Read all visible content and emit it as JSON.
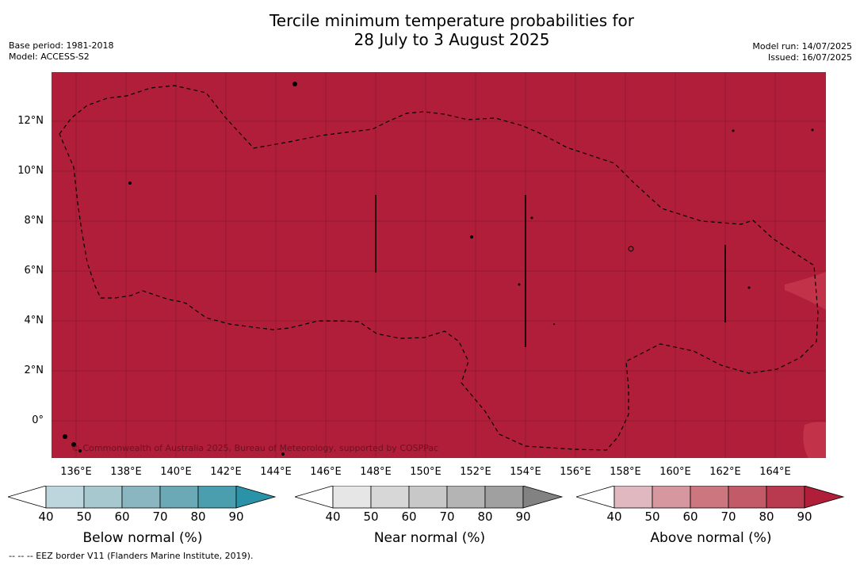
{
  "title_line1": "Tercile minimum temperature probabilities for",
  "title_line2": "28 July to 3 August 2025",
  "meta_left": {
    "base_period": "Base period: 1981-2018",
    "model": "Model: ACCESS-S2"
  },
  "meta_right": {
    "model_run": "Model run: 14/07/2025",
    "issued": "Issued: 16/07/2025"
  },
  "map": {
    "fill_color": "#b01e3a",
    "copyright": "© Commonwealth of Australia 2025, Bureau of Meteorology, supported by COSPPac",
    "lat_labels": [
      "12°N",
      "10°N",
      "8°N",
      "6°N",
      "4°N",
      "2°N",
      "0°"
    ],
    "lon_labels": [
      "136°E",
      "138°E",
      "140°E",
      "142°E",
      "144°E",
      "146°E",
      "148°E",
      "150°E",
      "152°E",
      "154°E",
      "156°E",
      "158°E",
      "160°E",
      "162°E",
      "164°E"
    ]
  },
  "colorbars": [
    {
      "label": "Below normal (%)",
      "ticks": [
        "40",
        "50",
        "60",
        "70",
        "80",
        "90"
      ],
      "colors": [
        "#bdd5dc",
        "#a7c8cf",
        "#89b6c1",
        "#6aa9b5",
        "#4a9eae",
        "#2a93a7"
      ]
    },
    {
      "label": "Near normal (%)",
      "ticks": [
        "40",
        "50",
        "60",
        "70",
        "80",
        "90"
      ],
      "colors": [
        "#e6e6e6",
        "#d7d7d7",
        "#c8c8c8",
        "#b4b4b4",
        "#a0a0a0",
        "#828282"
      ]
    },
    {
      "label": "Above normal (%)",
      "ticks": [
        "40",
        "50",
        "60",
        "70",
        "80",
        "90"
      ],
      "colors": [
        "#e0b8bf",
        "#d6979f",
        "#cc7680",
        "#c35a68",
        "#b93a4e",
        "#b01e3a"
      ]
    }
  ],
  "footer": "--  --  -- EEZ border V11 (Flanders Marine Institute, 2019)."
}
